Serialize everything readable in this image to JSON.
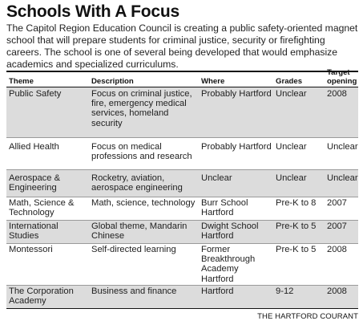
{
  "title": "Schools With A Focus",
  "intro": "The Capitol Region Education Council is creating a public safety-oriented magnet school that will prepare students for criminal justice, security or firefighting careers. The school is one of several being developed that would emphasize academics and specialized curriculums.",
  "headers": {
    "theme": "Theme",
    "description": "Description",
    "where": "Where",
    "grades": "Grades",
    "target_line1": "Target",
    "target_line2": "opening"
  },
  "rows": [
    {
      "theme": "Public Safety",
      "description": "Focus on criminal justice, fire, emergency medical services, homeland security",
      "where": "Probably Hartford",
      "grades": "Unclear",
      "target": "2008"
    },
    {
      "theme": "Allied Health",
      "description": "Focus on medical professions and research",
      "where": "Probably Hartford",
      "grades": "Unclear",
      "target": "Unclear"
    },
    {
      "theme": "Aerospace & Engineering",
      "description": "Rocketry, aviation, aerospace engineering",
      "where": "Unclear",
      "grades": "Unclear",
      "target": "Unclear"
    },
    {
      "theme": "Math, Science & Technology",
      "description": "Math, science, technology",
      "where": "Burr School Hartford",
      "grades": "Pre-K to 8",
      "target": "2007"
    },
    {
      "theme": "International Studies",
      "description": "Global theme, Mandarin Chinese",
      "where": "Dwight School Hartford",
      "grades": "Pre-K to 5",
      "target": "2007"
    },
    {
      "theme": "Montessori",
      "description": "Self-directed learning",
      "where": "Former Breakthrough Academy Hartford",
      "grades": "Pre-K to 5",
      "target": "2008"
    },
    {
      "theme": "The Corporation Academy",
      "description": "Business and finance",
      "where": "Hartford",
      "grades": "9-12",
      "target": "2008"
    }
  ],
  "credit": "THE HARTFORD COURANT",
  "colors": {
    "shade": "#dcdcdc",
    "rule": "#111111"
  }
}
